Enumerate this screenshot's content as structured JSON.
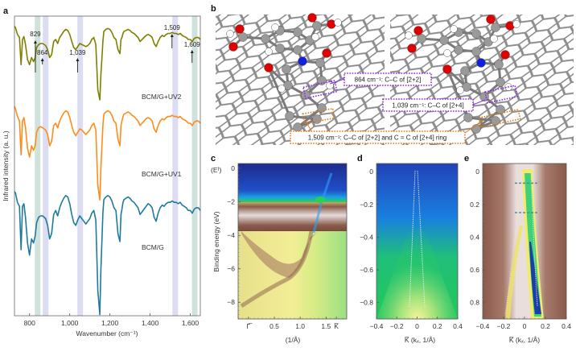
{
  "figure": {
    "panels": [
      "a",
      "b",
      "c",
      "d",
      "e"
    ]
  },
  "chart_data": [
    {
      "panel": "a",
      "type": "line",
      "title": "",
      "xlabel": "Wavenumber (cm⁻¹)",
      "ylabel": "Infrared intensity (a. u.)",
      "xlim": [
        725,
        1650
      ],
      "xticks": [
        800,
        1000,
        1200,
        1400,
        1600
      ],
      "xtick_labels": [
        "800",
        "1,000",
        "1,200",
        "1,400",
        "1,600"
      ],
      "grid": false,
      "highlight_bands": [
        {
          "center": 840,
          "color": "#cfe3dc"
        },
        {
          "center": 880,
          "color": "#dcdcf3"
        },
        {
          "center": 1052,
          "color": "#dcdcf3"
        },
        {
          "center": 1525,
          "color": "#dcdcf3"
        },
        {
          "center": 1622,
          "color": "#cfe3dc"
        }
      ],
      "annotations": [
        {
          "label": "829",
          "x": 829,
          "arrow": "long"
        },
        {
          "label": "864",
          "x": 864,
          "arrow": "short"
        },
        {
          "label": "1,039",
          "x": 1039,
          "arrow": "short"
        },
        {
          "label": "1,509",
          "x": 1509,
          "arrow": "long"
        },
        {
          "label": "1,609",
          "x": 1609,
          "arrow": "short"
        }
      ],
      "series": [
        {
          "name": "BCM/G+UV2",
          "color": "#808000",
          "x": [
            725,
            730,
            740,
            750,
            758,
            765,
            772,
            780,
            790,
            800,
            810,
            820,
            828,
            835,
            845,
            855,
            865,
            880,
            890,
            900,
            910,
            920,
            930,
            940,
            950,
            960,
            970,
            980,
            990,
            1000,
            1010,
            1020,
            1030,
            1040,
            1050,
            1060,
            1070,
            1080,
            1090,
            1100,
            1110,
            1120,
            1130,
            1140,
            1150,
            1155,
            1160,
            1165,
            1170,
            1180,
            1190,
            1200,
            1210,
            1220,
            1230,
            1240,
            1250,
            1255,
            1260,
            1265,
            1270,
            1280,
            1290,
            1300,
            1310,
            1320,
            1330,
            1340,
            1350,
            1360,
            1370,
            1380,
            1390,
            1400,
            1410,
            1420,
            1430,
            1440,
            1450,
            1460,
            1470,
            1480,
            1490,
            1500,
            1510,
            1520,
            1530,
            1540,
            1550,
            1560,
            1570,
            1580,
            1590,
            1600,
            1610,
            1620,
            1630,
            1640,
            1650
          ],
          "y": [
            0.93,
            0.92,
            0.85,
            0.82,
            0.55,
            0.8,
            0.83,
            0.75,
            0.6,
            0.55,
            0.62,
            0.58,
            0.62,
            0.72,
            0.75,
            0.76,
            0.76,
            0.74,
            0.7,
            0.62,
            0.65,
            0.78,
            0.8,
            0.76,
            0.82,
            0.85,
            0.88,
            0.9,
            0.89,
            0.85,
            0.78,
            0.72,
            0.7,
            0.73,
            0.76,
            0.75,
            0.74,
            0.73,
            0.74,
            0.76,
            0.8,
            0.82,
            0.75,
            0.3,
            0.2,
            0.45,
            0.6,
            0.78,
            0.88,
            0.9,
            0.91,
            0.9,
            0.87,
            0.82,
            0.8,
            0.7,
            0.66,
            0.8,
            0.82,
            0.86,
            0.88,
            0.89,
            0.9,
            0.89,
            0.87,
            0.86,
            0.84,
            0.82,
            0.78,
            0.8,
            0.82,
            0.84,
            0.85,
            0.84,
            0.82,
            0.76,
            0.73,
            0.78,
            0.82,
            0.84,
            0.83,
            0.85,
            0.86,
            0.86,
            0.87,
            0.86,
            0.86,
            0.85,
            0.86,
            0.84,
            0.83,
            0.82,
            0.8,
            0.8,
            0.78,
            0.81,
            0.82,
            0.82,
            0.8
          ]
        },
        {
          "name": "BCM/G+UV1",
          "color": "#ff8c1a",
          "x": [
            725,
            730,
            740,
            750,
            758,
            765,
            772,
            780,
            790,
            800,
            810,
            820,
            828,
            835,
            845,
            855,
            865,
            880,
            890,
            900,
            910,
            920,
            930,
            940,
            950,
            960,
            970,
            980,
            990,
            1000,
            1010,
            1020,
            1030,
            1040,
            1050,
            1060,
            1070,
            1080,
            1090,
            1100,
            1110,
            1120,
            1130,
            1140,
            1150,
            1155,
            1160,
            1165,
            1170,
            1180,
            1190,
            1200,
            1210,
            1220,
            1230,
            1240,
            1250,
            1255,
            1260,
            1265,
            1270,
            1280,
            1290,
            1300,
            1310,
            1320,
            1330,
            1340,
            1350,
            1360,
            1370,
            1380,
            1390,
            1400,
            1410,
            1420,
            1430,
            1440,
            1450,
            1460,
            1470,
            1480,
            1490,
            1500,
            1510,
            1520,
            1530,
            1540,
            1550,
            1560,
            1570,
            1580,
            1590,
            1600,
            1610,
            1620,
            1630,
            1640,
            1650
          ],
          "y": [
            0.95,
            0.93,
            0.86,
            0.82,
            0.52,
            0.82,
            0.85,
            0.76,
            0.58,
            0.5,
            0.6,
            0.56,
            0.6,
            0.72,
            0.76,
            0.77,
            0.76,
            0.74,
            0.7,
            0.6,
            0.64,
            0.78,
            0.8,
            0.76,
            0.82,
            0.86,
            0.89,
            0.91,
            0.9,
            0.85,
            0.78,
            0.72,
            0.69,
            0.72,
            0.75,
            0.74,
            0.72,
            0.7,
            0.72,
            0.74,
            0.78,
            0.8,
            0.74,
            0.25,
            0.12,
            0.4,
            0.58,
            0.78,
            0.88,
            0.9,
            0.91,
            0.9,
            0.87,
            0.82,
            0.8,
            0.66,
            0.6,
            0.78,
            0.82,
            0.86,
            0.88,
            0.89,
            0.9,
            0.89,
            0.87,
            0.86,
            0.84,
            0.82,
            0.78,
            0.8,
            0.82,
            0.84,
            0.85,
            0.84,
            0.82,
            0.75,
            0.72,
            0.78,
            0.82,
            0.84,
            0.83,
            0.85,
            0.86,
            0.86,
            0.87,
            0.86,
            0.86,
            0.85,
            0.86,
            0.84,
            0.83,
            0.82,
            0.8,
            0.8,
            0.78,
            0.81,
            0.82,
            0.82,
            0.8
          ]
        },
        {
          "name": "BCM/G",
          "color": "#1f7a9e",
          "x": [
            725,
            730,
            740,
            750,
            758,
            765,
            772,
            780,
            790,
            800,
            810,
            820,
            828,
            835,
            845,
            855,
            865,
            880,
            890,
            900,
            910,
            920,
            930,
            940,
            950,
            960,
            970,
            980,
            990,
            1000,
            1010,
            1020,
            1030,
            1040,
            1050,
            1060,
            1070,
            1080,
            1090,
            1100,
            1110,
            1120,
            1130,
            1140,
            1150,
            1155,
            1160,
            1165,
            1170,
            1180,
            1190,
            1200,
            1210,
            1220,
            1230,
            1240,
            1250,
            1255,
            1260,
            1265,
            1270,
            1280,
            1290,
            1300,
            1310,
            1320,
            1330,
            1340,
            1350,
            1360,
            1370,
            1380,
            1390,
            1400,
            1410,
            1420,
            1430,
            1440,
            1450,
            1460,
            1470,
            1480,
            1490,
            1500,
            1510,
            1520,
            1530,
            1540,
            1550,
            1560,
            1570,
            1580,
            1590,
            1600,
            1610,
            1620,
            1630,
            1640,
            1650
          ],
          "y": [
            0.93,
            0.92,
            0.85,
            0.82,
            0.5,
            0.82,
            0.84,
            0.74,
            0.55,
            0.46,
            0.58,
            0.55,
            0.6,
            0.7,
            0.74,
            0.75,
            0.75,
            0.73,
            0.68,
            0.58,
            0.62,
            0.76,
            0.79,
            0.75,
            0.81,
            0.85,
            0.88,
            0.9,
            0.89,
            0.84,
            0.76,
            0.7,
            0.68,
            0.72,
            0.75,
            0.73,
            0.71,
            0.69,
            0.71,
            0.73,
            0.77,
            0.79,
            0.72,
            0.2,
            0.02,
            0.35,
            0.55,
            0.77,
            0.87,
            0.89,
            0.9,
            0.89,
            0.86,
            0.81,
            0.79,
            0.62,
            0.56,
            0.76,
            0.8,
            0.85,
            0.87,
            0.88,
            0.89,
            0.88,
            0.86,
            0.85,
            0.83,
            0.81,
            0.76,
            0.78,
            0.8,
            0.82,
            0.84,
            0.83,
            0.81,
            0.74,
            0.71,
            0.77,
            0.81,
            0.83,
            0.82,
            0.84,
            0.85,
            0.85,
            0.86,
            0.85,
            0.85,
            0.84,
            0.85,
            0.83,
            0.82,
            0.81,
            0.79,
            0.79,
            0.77,
            0.8,
            0.81,
            0.81,
            0.79
          ]
        }
      ]
    },
    {
      "panel": "c",
      "type": "heatmap",
      "xlabel": "(1/Å)",
      "ylabel": "Binding energy (eV)",
      "ylim": [
        -9,
        0.3
      ],
      "xlim": [
        -0.2,
        1.9
      ],
      "yticks": [
        0,
        -2,
        -4,
        -6,
        -8
      ],
      "ytick_labels": [
        "0",
        "−2",
        "−4",
        "−6",
        "−8"
      ],
      "y_ref_label": "(Eᶠ)",
      "xtick_labels": [
        {
          "pos": 0,
          "label": "Γ̅"
        },
        {
          "pos": 0.5,
          "label": "0.5"
        },
        {
          "pos": 1.0,
          "label": "1.0"
        },
        {
          "pos": 1.5,
          "label": "1.5"
        },
        {
          "pos": 1.7,
          "label": "K̅"
        }
      ]
    },
    {
      "panel": "d",
      "type": "heatmap",
      "xlabel": "K̅  (kₓ, 1/Å)",
      "xlim": [
        -0.4,
        0.4
      ],
      "ylim": [
        -0.9,
        0.05
      ],
      "xticks": [
        -0.4,
        -0.2,
        0,
        0.2,
        0.4
      ],
      "xtick_labels": [
        "−0.4",
        "−0.2",
        "0",
        "0.2",
        "0.4"
      ],
      "yticks": [
        0,
        -0.2,
        -0.4,
        -0.6,
        -0.8
      ],
      "ytick_labels": [
        "0",
        "−0.2",
        "−0.4",
        "−0.6",
        "−0.8"
      ]
    },
    {
      "panel": "e",
      "type": "heatmap",
      "xlabel": "K̅  (kₓ, 1/Å)",
      "xlim": [
        -0.4,
        0.4
      ],
      "ylim": [
        -0.05,
        0.9
      ],
      "xticks": [
        -0.4,
        -0.2,
        0,
        0.2,
        0.4
      ],
      "xtick_labels": [
        "−0.4",
        "−0.2",
        "0",
        "0.2",
        "0.4"
      ],
      "yticks": [
        0,
        0.2,
        0.4,
        0.6,
        0.8
      ],
      "ytick_labels": [
        "0",
        "0.2",
        "0.4",
        "0.6",
        "0.8"
      ],
      "dashed_levels": [
        0.07,
        0.25
      ]
    }
  ],
  "panel_b": {
    "labels": [
      {
        "text": "864 cm⁻¹: C–C of [2+2]",
        "color": "#8a2be2"
      },
      {
        "text": "1,039 cm⁻¹: C–C of [2+4]",
        "color": "#8a2be2"
      },
      {
        "text": "1,509 cm⁻¹: C–C of [2+2]  and C = C of [2+4] ring",
        "color": "#e07b16"
      }
    ],
    "atom_colors": {
      "carbon": "#9a9a9a",
      "oxygen": "#e00000",
      "nitrogen": "#1020e0",
      "hydrogen": "#ffffff",
      "graphene": "#8c8c8c"
    }
  }
}
